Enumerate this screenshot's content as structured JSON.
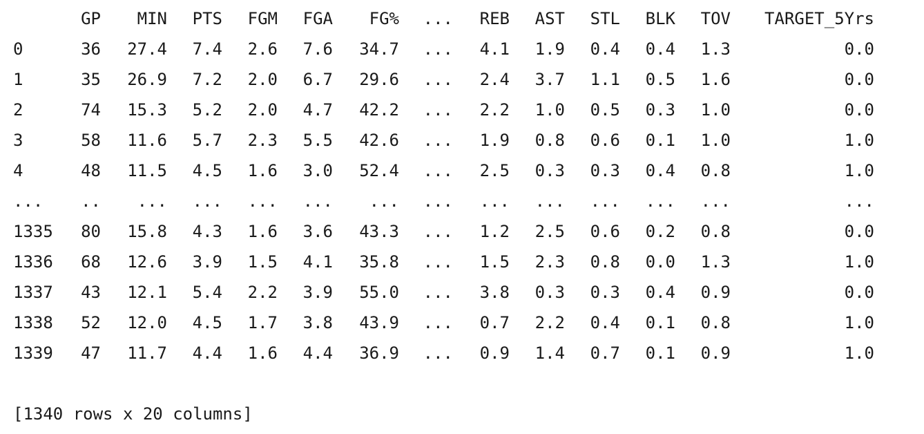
{
  "columns": [
    "",
    "GP",
    "MIN",
    "PTS",
    "FGM",
    "FGA",
    "FG%",
    "...",
    "REB",
    "AST",
    "STL",
    "BLK",
    "TOV",
    "TARGET_5Yrs"
  ],
  "rows": [
    [
      "0",
      "36",
      "27.4",
      "7.4",
      "2.6",
      "7.6",
      "34.7",
      "...",
      "4.1",
      "1.9",
      "0.4",
      "0.4",
      "1.3",
      "0.0"
    ],
    [
      "1",
      "35",
      "26.9",
      "7.2",
      "2.0",
      "6.7",
      "29.6",
      "...",
      "2.4",
      "3.7",
      "1.1",
      "0.5",
      "1.6",
      "0.0"
    ],
    [
      "2",
      "74",
      "15.3",
      "5.2",
      "2.0",
      "4.7",
      "42.2",
      "...",
      "2.2",
      "1.0",
      "0.5",
      "0.3",
      "1.0",
      "0.0"
    ],
    [
      "3",
      "58",
      "11.6",
      "5.7",
      "2.3",
      "5.5",
      "42.6",
      "...",
      "1.9",
      "0.8",
      "0.6",
      "0.1",
      "1.0",
      "1.0"
    ],
    [
      "4",
      "48",
      "11.5",
      "4.5",
      "1.6",
      "3.0",
      "52.4",
      "...",
      "2.5",
      "0.3",
      "0.3",
      "0.4",
      "0.8",
      "1.0"
    ],
    [
      "...",
      "..",
      "...",
      "...",
      "...",
      "...",
      "...",
      "...",
      "...",
      "...",
      "...",
      "...",
      "...",
      "..."
    ],
    [
      "1335",
      "80",
      "15.8",
      "4.3",
      "1.6",
      "3.6",
      "43.3",
      "...",
      "1.2",
      "2.5",
      "0.6",
      "0.2",
      "0.8",
      "0.0"
    ],
    [
      "1336",
      "68",
      "12.6",
      "3.9",
      "1.5",
      "4.1",
      "35.8",
      "...",
      "1.5",
      "2.3",
      "0.8",
      "0.0",
      "1.3",
      "1.0"
    ],
    [
      "1337",
      "43",
      "12.1",
      "5.4",
      "2.2",
      "3.9",
      "55.0",
      "...",
      "3.8",
      "0.3",
      "0.3",
      "0.4",
      "0.9",
      "0.0"
    ],
    [
      "1338",
      "52",
      "12.0",
      "4.5",
      "1.7",
      "3.8",
      "43.9",
      "...",
      "0.7",
      "2.2",
      "0.4",
      "0.1",
      "0.8",
      "1.0"
    ],
    [
      "1339",
      "47",
      "11.7",
      "4.4",
      "1.6",
      "4.4",
      "36.9",
      "...",
      "0.9",
      "1.4",
      "0.7",
      "0.1",
      "0.9",
      "1.0"
    ]
  ],
  "footer": "[1340 rows x 20 columns]"
}
